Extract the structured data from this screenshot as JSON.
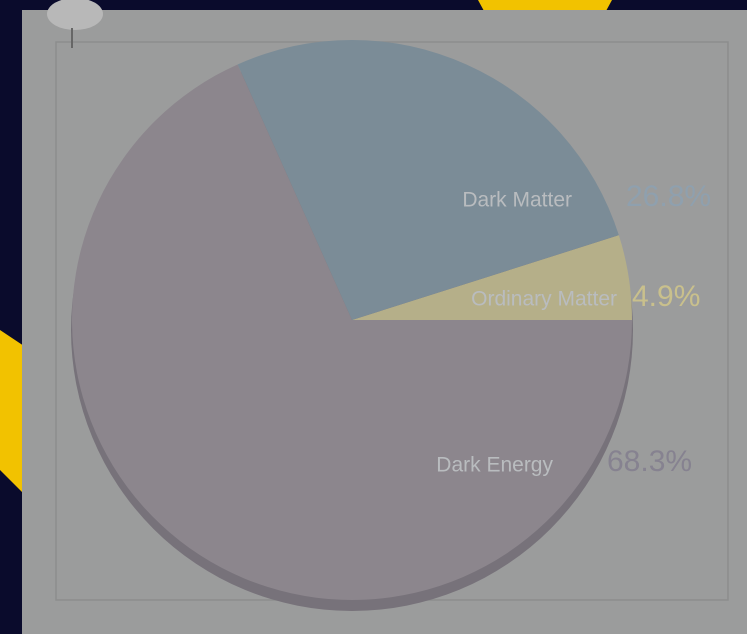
{
  "chart_data": {
    "type": "pie",
    "categories": [
      "Ordinary Matter",
      "Dark Matter",
      "Dark Energy"
    ],
    "values": [
      4.9,
      26.8,
      68.3
    ],
    "value_labels": [
      "4.9%",
      "26.8%",
      "68.3%"
    ],
    "colors": [
      "#b5af89",
      "#7b8c97",
      "#8c868d"
    ]
  }
}
